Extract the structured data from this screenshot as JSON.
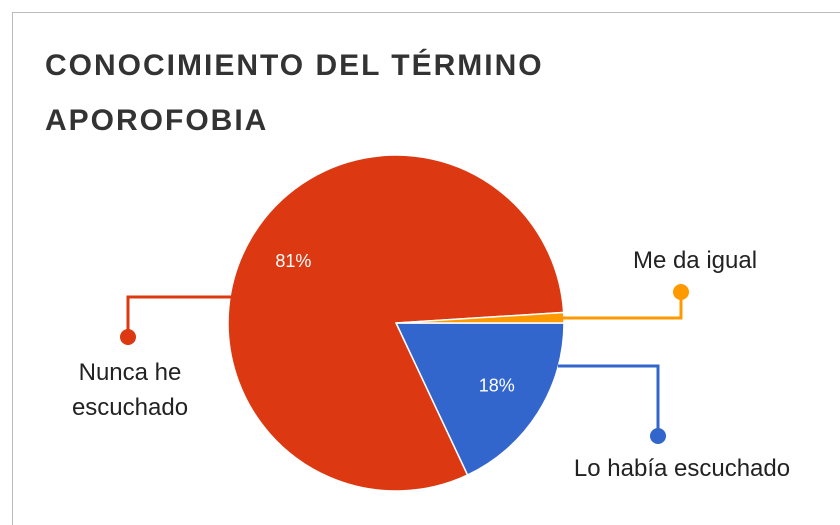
{
  "chart_data": {
    "type": "pie",
    "title": "CONOCIMIENTO DEL TÉRMINO APOROFOBIA",
    "categories": [
      "Lo había escuchado",
      "Nunca he escuchado",
      "Me da igual"
    ],
    "values": [
      18,
      81,
      1
    ],
    "value_labels": [
      "18%",
      "81%",
      null
    ],
    "colors": [
      "#3366cc",
      "#dc3912",
      "#ff9900"
    ]
  }
}
